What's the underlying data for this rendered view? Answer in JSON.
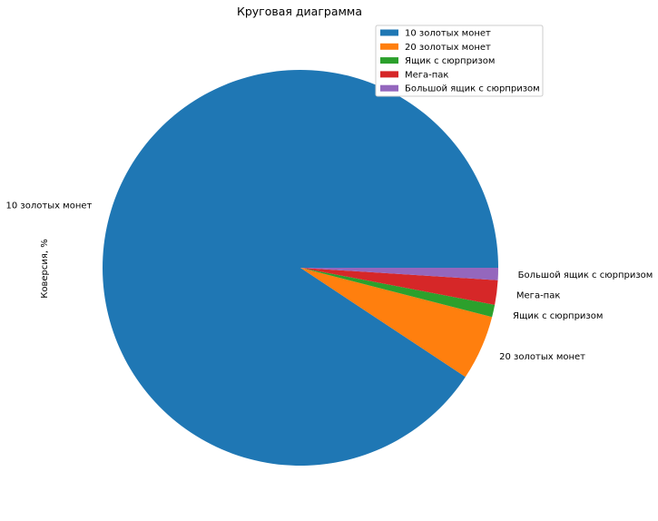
{
  "chart_data": {
    "type": "pie",
    "title": "Круговая диаграмма",
    "ylabel": "Коверсия, %",
    "categories": [
      "10 золотых монет",
      "20 золотых монет",
      "Ящик с сюрпризом",
      "Мега-пак",
      "Большой ящик с сюрпризом"
    ],
    "values": [
      90.7,
      5.3,
      1.0,
      2.0,
      1.0
    ],
    "colors": [
      "#1f77b4",
      "#ff7f0e",
      "#2ca02c",
      "#d62728",
      "#9467bd"
    ],
    "legend": {
      "placement": "upper-right",
      "entries": [
        "10 золотых монет",
        "20 золотых монет",
        "Ящик с сюрпризом",
        "Мега-пак",
        "Большой ящик с сюрпризом"
      ]
    },
    "start_angle_deg": 0,
    "direction": "counterclockwise"
  }
}
